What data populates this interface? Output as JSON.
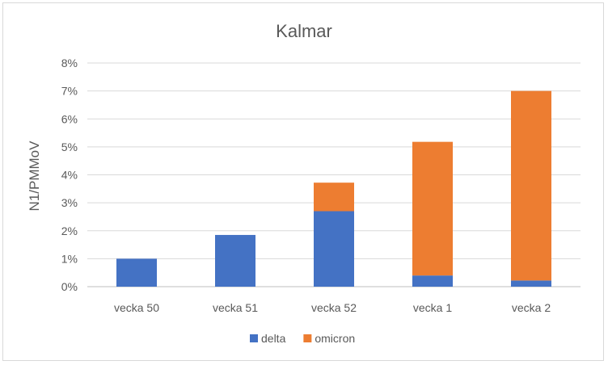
{
  "chart_data": {
    "type": "bar",
    "stacked": true,
    "title": "Kalmar",
    "xlabel": "",
    "ylabel": "N1/PMMoV",
    "categories": [
      "vecka 50",
      "vecka 51",
      "vecka 52",
      "vecka 1",
      "vecka 2"
    ],
    "series": [
      {
        "name": "delta",
        "color": "#4472c4",
        "values": [
          1.0,
          1.85,
          2.7,
          0.4,
          0.22
        ]
      },
      {
        "name": "omicron",
        "color": "#ed7d31",
        "values": [
          0.0,
          0.0,
          1.02,
          4.78,
          6.78
        ]
      }
    ],
    "ylim": [
      0,
      8
    ],
    "yticks": [
      "0%",
      "1%",
      "2%",
      "3%",
      "4%",
      "5%",
      "6%",
      "7%",
      "8%"
    ],
    "grid": true,
    "legend": "bottom"
  }
}
